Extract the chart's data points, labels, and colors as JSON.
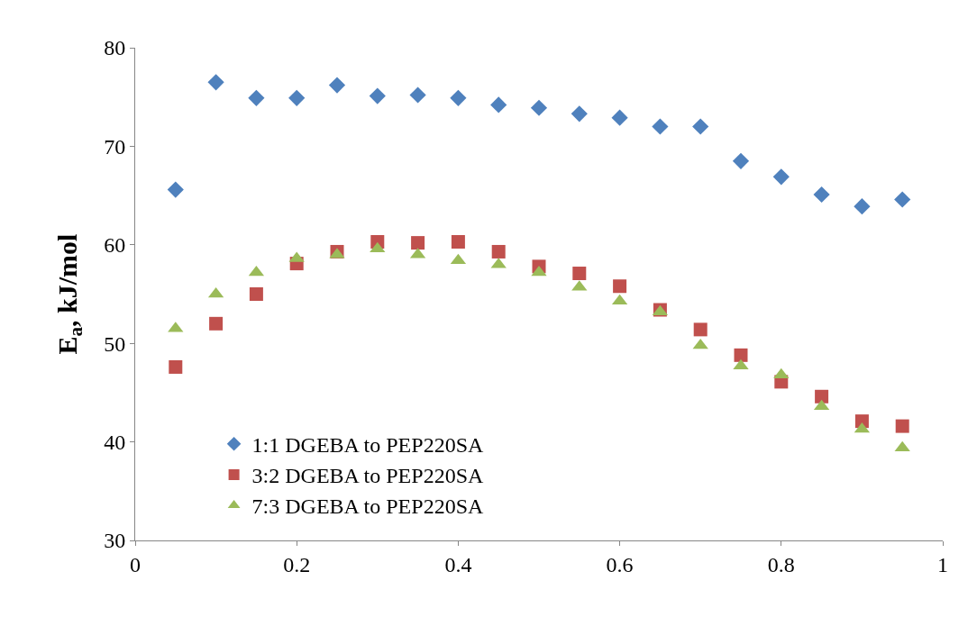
{
  "chart_data": {
    "type": "scatter",
    "ylabel": "E$_{a}$, kJ/mol",
    "x": [
      0.05,
      0.1,
      0.15,
      0.2,
      0.25,
      0.3,
      0.35,
      0.4,
      0.45,
      0.5,
      0.55,
      0.6,
      0.65,
      0.7,
      0.75,
      0.8,
      0.85,
      0.9,
      0.95
    ],
    "series": [
      {
        "name": "1:1 DGEBA to PEP220SA",
        "color": "#4f81bd",
        "marker": "diamond",
        "values": [
          65.6,
          76.5,
          74.9,
          74.9,
          76.2,
          75.1,
          75.2,
          74.9,
          74.2,
          73.9,
          73.3,
          72.9,
          72.0,
          72.0,
          68.5,
          66.9,
          65.1,
          63.9,
          64.6
        ]
      },
      {
        "name": "3:2 DGEBA to PEP220SA",
        "color": "#c0504d",
        "marker": "square",
        "values": [
          47.6,
          52.0,
          55.0,
          58.1,
          59.3,
          60.3,
          60.2,
          60.3,
          59.3,
          57.8,
          57.1,
          55.8,
          53.4,
          51.4,
          48.8,
          46.1,
          44.6,
          42.1,
          41.6
        ]
      },
      {
        "name": "7:3 DGEBA to PEP220SA",
        "color": "#9bbb59",
        "marker": "triangle",
        "values": [
          51.5,
          55.0,
          57.2,
          58.6,
          59.0,
          59.6,
          59.0,
          58.4,
          58.0,
          57.2,
          55.7,
          54.3,
          53.2,
          49.8,
          47.7,
          46.8,
          43.6,
          41.3,
          39.4
        ]
      }
    ],
    "xlim": [
      0,
      1
    ],
    "xticks": [
      0,
      0.2,
      0.4,
      0.6,
      0.8,
      1
    ],
    "ylim": [
      30,
      80
    ],
    "yticks": [
      30,
      40,
      50,
      60,
      70,
      80
    ],
    "legend": "bottom left"
  }
}
